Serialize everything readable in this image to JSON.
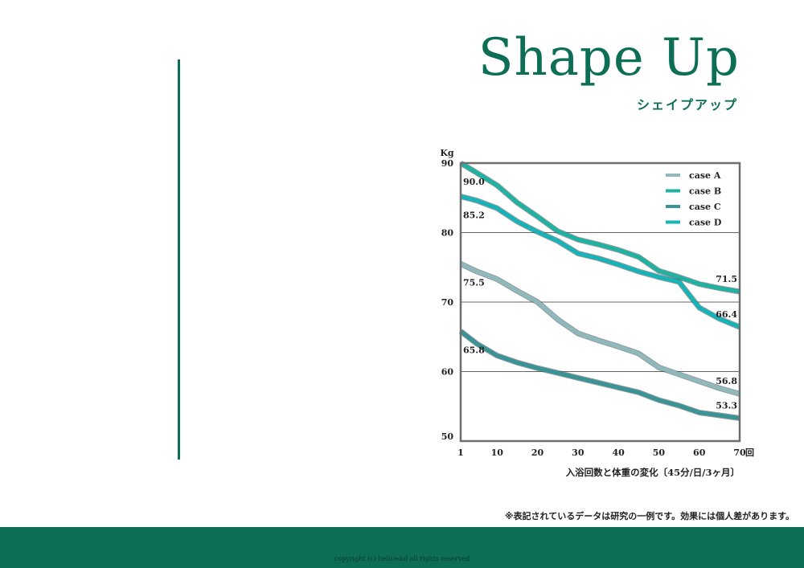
{
  "page": {
    "title": "Shape Up",
    "subtitle": "シェイプアップ",
    "note": "※表記されているデータは研究の一例です。効果には個人差があります。",
    "copyright": "copyright (c) helicedol all rights reserved"
  },
  "colors": {
    "brand": "#0d6e56",
    "caseA": "#8fb9bd",
    "caseB": "#1fb1a2",
    "caseC": "#3a9397",
    "caseD": "#16b3b8"
  },
  "chart_data": {
    "type": "line",
    "ylabel": "Kg",
    "xlabel": "入浴回数と体重の変化〔45分/日/3ヶ月〕",
    "x_unit": "回",
    "ylim": [
      50,
      90
    ],
    "xlim": [
      1,
      70
    ],
    "x_ticks": [
      "1",
      "10",
      "20",
      "30",
      "40",
      "50",
      "60",
      "70"
    ],
    "y_ticks": [
      "90",
      "80",
      "70",
      "60",
      "50"
    ],
    "grid": true,
    "legend_position": "top-right",
    "x": [
      1,
      5,
      10,
      15,
      20,
      25,
      30,
      35,
      40,
      45,
      50,
      55,
      60,
      65,
      70
    ],
    "series": [
      {
        "name": "case A",
        "color": "#8fb9bd",
        "values": [
          75.5,
          74.4,
          73.3,
          71.6,
          70.0,
          67.5,
          65.5,
          64.5,
          63.6,
          62.6,
          60.6,
          59.6,
          58.6,
          57.6,
          56.8
        ],
        "start_label": "75.5",
        "end_label": "56.8"
      },
      {
        "name": "case B",
        "color": "#1fb1a2",
        "values": [
          90.0,
          88.6,
          86.8,
          84.3,
          82.3,
          80.2,
          79.0,
          78.3,
          77.5,
          76.5,
          74.5,
          73.6,
          72.6,
          72.0,
          71.5
        ],
        "start_label": "90.0",
        "end_label": "71.5"
      },
      {
        "name": "case C",
        "color": "#3a9397",
        "values": [
          65.8,
          64.0,
          62.3,
          61.3,
          60.5,
          59.8,
          59.1,
          58.4,
          57.7,
          57.0,
          55.9,
          55.1,
          54.1,
          53.7,
          53.3
        ],
        "start_label": "65.8",
        "end_label": "53.3"
      },
      {
        "name": "case D",
        "color": "#16b3b8",
        "values": [
          85.2,
          84.6,
          83.5,
          81.6,
          80.1,
          78.8,
          77.0,
          76.3,
          75.4,
          74.4,
          73.6,
          72.9,
          69.2,
          67.6,
          66.4
        ],
        "start_label": "85.2",
        "end_label": "66.4"
      }
    ]
  }
}
